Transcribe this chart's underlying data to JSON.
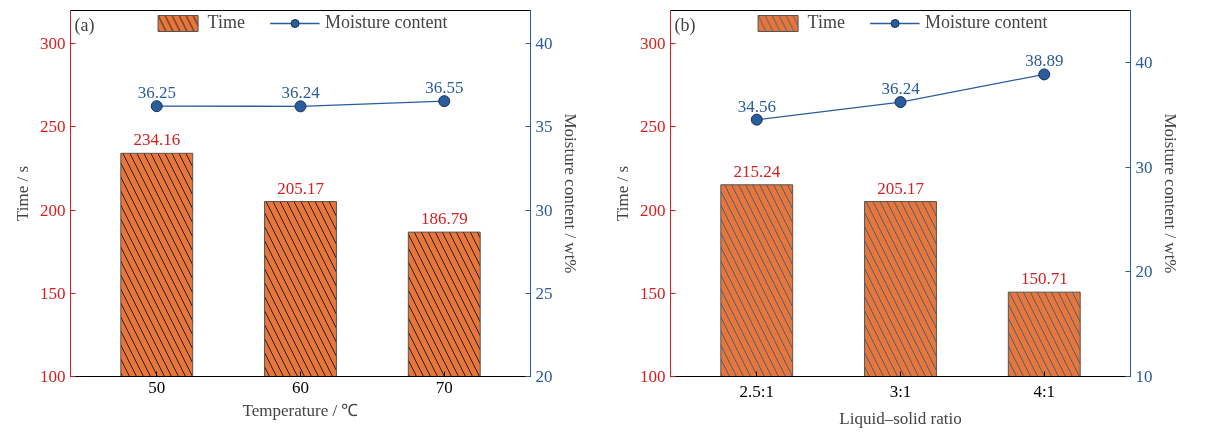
{
  "chart_data": [
    {
      "type": "bar",
      "xlabel": "Temperature / ℃",
      "ylabel": "Time / s",
      "y2label": "Moisture content / wt%",
      "annotations": [
        "(a)"
      ],
      "categories": [
        "50",
        "60",
        "70"
      ],
      "series": [
        {
          "name": "Time",
          "color": "#e8763a",
          "values": [
            234.16,
            205.17,
            186.79
          ]
        },
        {
          "name": "Moisture content",
          "type": "line",
          "axis": "y2",
          "color": "#2b5c9b",
          "values": [
            36.25,
            36.24,
            36.55
          ]
        }
      ],
      "ylim": [
        100,
        320
      ],
      "yticks": [
        100,
        150,
        200,
        250,
        300
      ],
      "y2lim": [
        20,
        42
      ],
      "y2ticks": [
        20,
        25,
        30,
        35,
        40
      ],
      "data_labels": true,
      "legend": "top",
      "marker": "circle",
      "grid": false
    },
    {
      "type": "bar",
      "xlabel": "Liquid–solid ratio",
      "ylabel": "Time / s",
      "y2label": "Moisture content / wt%",
      "annotations": [
        "(b)"
      ],
      "categories": [
        "2.5:1",
        "3:1",
        "4:1"
      ],
      "series": [
        {
          "name": "Time",
          "color": "#e8763a",
          "values": [
            215.24,
            205.17,
            150.71
          ]
        },
        {
          "name": "Moisture content",
          "type": "line",
          "axis": "y2",
          "color": "#2b5c9b",
          "values": [
            34.56,
            36.24,
            38.89
          ]
        }
      ],
      "ylim": [
        100,
        320
      ],
      "yticks": [
        100,
        150,
        200,
        250,
        300
      ],
      "y2lim": [
        10,
        45
      ],
      "y2ticks": [
        10,
        20,
        30,
        40
      ],
      "data_labels": true,
      "legend": "top",
      "marker": "circle",
      "grid": false
    }
  ]
}
